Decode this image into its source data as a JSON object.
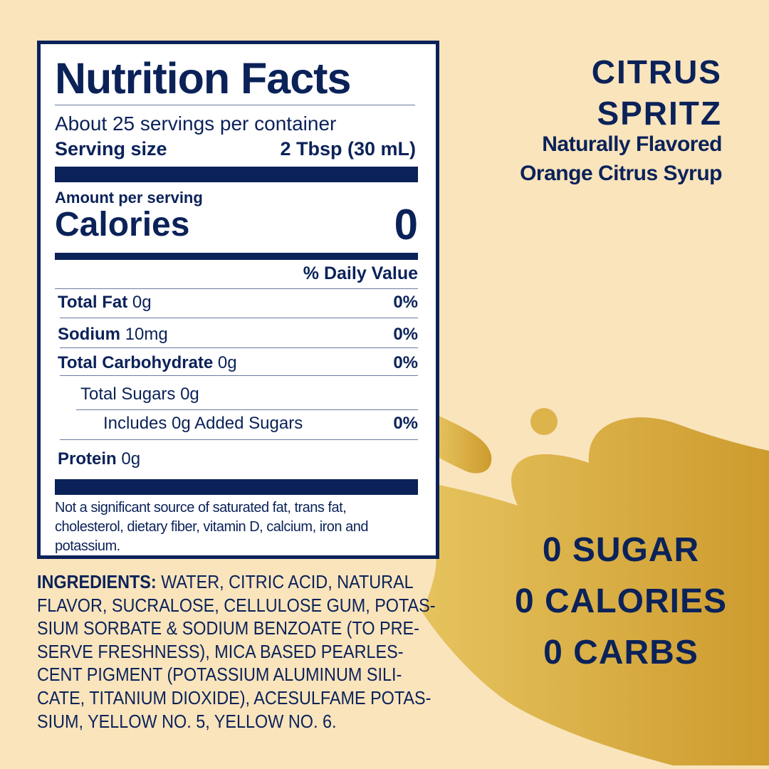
{
  "colors": {
    "navy": "#0b2259",
    "background": "#f9e4bc",
    "gold_light": "#e3bd57",
    "gold_dark": "#cf9d30"
  },
  "label": {
    "title": "Nutrition Facts",
    "servings": "About 25 servings per container",
    "serving_size_label": "Serving size",
    "serving_size_value": "2 Tbsp (30 mL)",
    "amount_per_serving": "Amount per serving",
    "calories_label": "Calories",
    "calories_value": "0",
    "daily_value_header": "% Daily Value",
    "rows": [
      {
        "name": "Total Fat",
        "amount": "0g",
        "dv": "0%"
      },
      {
        "name": "Sodium",
        "amount": "10mg",
        "dv": "0%"
      },
      {
        "name": "Total Carbohydrate",
        "amount": "0g",
        "dv": "0%"
      },
      {
        "name": "Total Sugars 0g",
        "amount": "",
        "dv": ""
      },
      {
        "name": "Includes 0g Added Sugars",
        "amount": "",
        "dv": "0%"
      },
      {
        "name": "Protein",
        "amount": "0g",
        "dv": ""
      }
    ],
    "footnote": [
      "Not a significant source of saturated fat, trans fat,",
      "cholesterol, dietary fiber, vitamin D, calcium, iron and",
      "potassium."
    ]
  },
  "ingredients": {
    "label": "INGREDIENTS:",
    "lines": [
      " WATER, CITRIC ACID, NATURAL",
      "FLAVOR, SUCRALOSE, CELLULOSE GUM, POTAS-",
      "SIUM SORBATE & SODIUM BENZOATE (TO PRE-",
      "SERVE FRESHNESS), MICA BASED PEARLES-",
      "CENT PIGMENT (POTASSIUM ALUMINUM SILI-",
      "CATE, TITANIUM DIOXIDE), ACESULFAME POTAS-",
      "SIUM, YELLOW NO. 5, YELLOW NO. 6."
    ]
  },
  "product": {
    "name_line1": "CITRUS",
    "name_line2": "SPRITZ",
    "desc_line1": "Naturally Flavored",
    "desc_line2": "Orange Citrus Syrup"
  },
  "claims": [
    "0 SUGAR",
    "0 CALORIES",
    "0 CARBS"
  ]
}
